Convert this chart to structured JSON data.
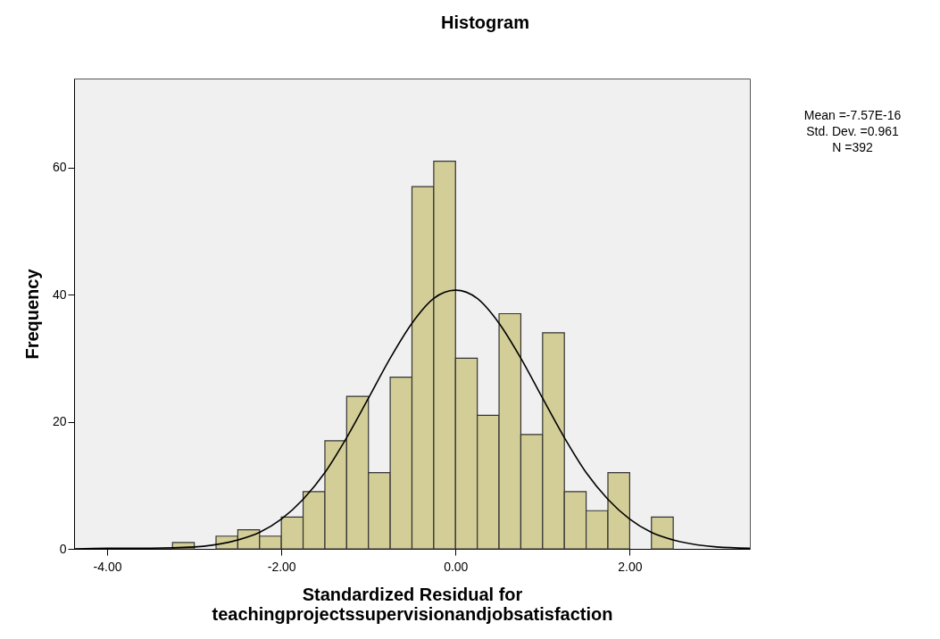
{
  "chart_data": {
    "type": "histogram",
    "title": "Histogram",
    "xlabel": "Standardized Residual for\nteachingprojectssupervisionandjobsatisfaction",
    "ylabel": "Frequency",
    "bins": [
      -3.25,
      -3.0,
      -2.75,
      -2.5,
      -2.25,
      -2.0,
      -1.75,
      -1.5,
      -1.25,
      -1.0,
      -0.75,
      -0.5,
      -0.25,
      0.0,
      0.25,
      0.5,
      0.75,
      1.0,
      1.25,
      1.5,
      1.75,
      2.0,
      2.25,
      2.5
    ],
    "values": [
      1,
      0,
      2,
      3,
      2,
      5,
      9,
      17,
      24,
      12,
      27,
      57,
      61,
      30,
      21,
      37,
      18,
      34,
      9,
      6,
      12,
      0,
      5
    ],
    "color": "#d3ce97",
    "series": [
      {
        "type": "line",
        "color": "#000000",
        "x": [
          -4.38,
          -4.0,
          -3.5,
          -3.0,
          -2.5,
          -2.25,
          -2.0,
          -1.75,
          -1.5,
          -1.25,
          -1.0,
          -0.75,
          -0.5,
          -0.25,
          0.0,
          0.25,
          0.5,
          0.75,
          1.0,
          1.25,
          1.5,
          1.75,
          2.0,
          2.25,
          2.5,
          3.0,
          3.38
        ],
        "values": [
          0,
          0.1,
          0.1,
          0.3,
          1.4,
          2.6,
          4.7,
          7.8,
          12,
          17.5,
          23.7,
          30,
          35.5,
          39.4,
          40.7,
          39.4,
          35.5,
          30,
          23.7,
          17.5,
          12,
          7.8,
          4.7,
          2.6,
          1.4,
          0.3,
          0.1
        ]
      }
    ],
    "xlim": [
      -4.38,
      3.38
    ],
    "xticks": [
      {
        "value": -4,
        "label": "-4.00"
      },
      {
        "value": -2,
        "label": "-2.00"
      },
      {
        "value": 0,
        "label": "0.00"
      },
      {
        "value": 2,
        "label": "2.00"
      }
    ],
    "ylim": [
      0,
      74
    ],
    "yticks": [
      0,
      20,
      40,
      60
    ],
    "grid": false,
    "marker": "none",
    "line_style": "solid",
    "annotations": [
      "Mean =-7.57E-16",
      "Std. Dev. =0.961",
      "N =392"
    ]
  }
}
